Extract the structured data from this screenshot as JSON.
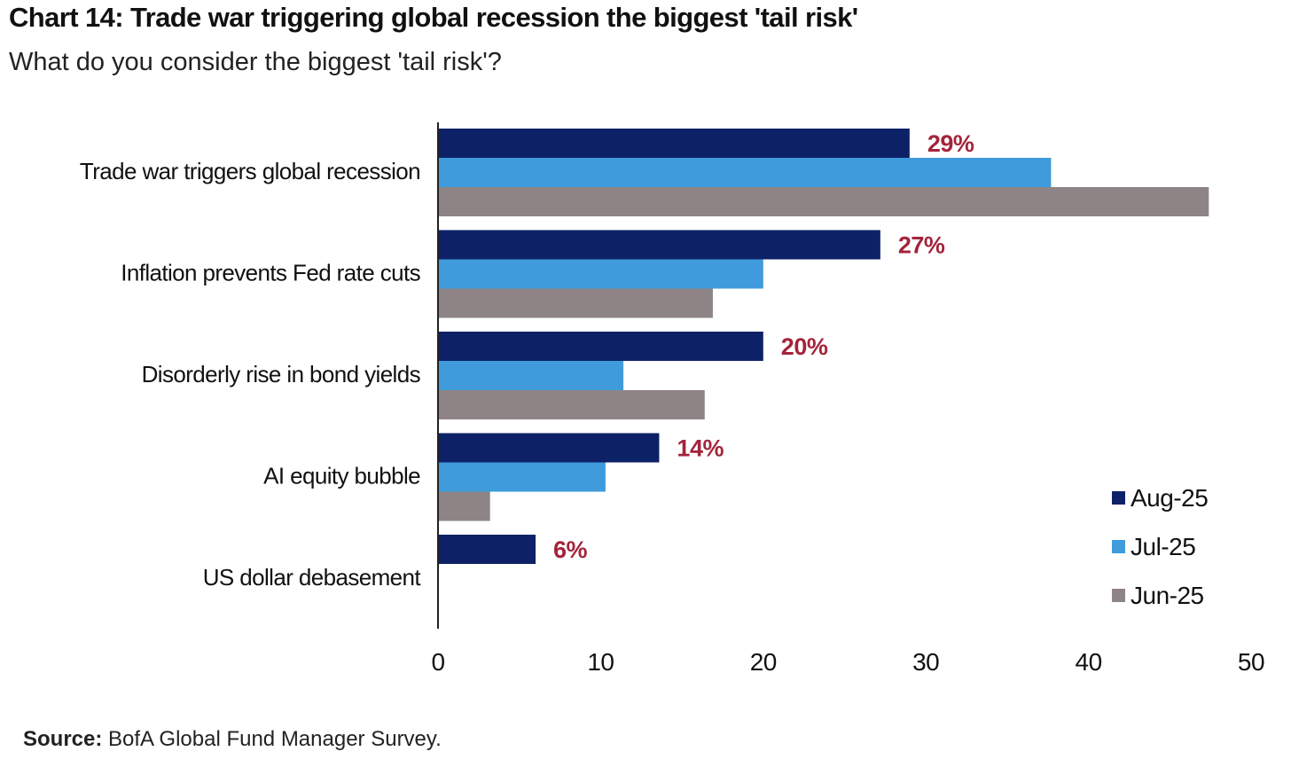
{
  "header": {
    "title": "Chart 14: Trade war triggering global recession the biggest 'tail risk'",
    "subtitle": "What do you consider the biggest 'tail risk'?"
  },
  "footer": {
    "source_label": "Source:",
    "source_text": " BofA Global Fund Manager Survey."
  },
  "chart_data": {
    "type": "bar",
    "orientation": "horizontal",
    "categories": [
      "Trade war triggers global recession",
      "Inflation prevents Fed rate cuts",
      "Disorderly rise in bond yields",
      "AI equity bubble",
      "US dollar debasement"
    ],
    "series": [
      {
        "name": "Aug-25",
        "color": "#0d2266",
        "values": [
          29,
          27.2,
          20,
          13.6,
          6
        ]
      },
      {
        "name": "Jul-25",
        "color": "#3f9bdb",
        "values": [
          37.7,
          20,
          11.4,
          10.3,
          0
        ]
      },
      {
        "name": "Jun-25",
        "color": "#8f8485",
        "values": [
          47.4,
          16.9,
          16.4,
          3.2,
          0
        ]
      }
    ],
    "data_labels": [
      "29%",
      "27%",
      "20%",
      "14%",
      "6%"
    ],
    "data_label_color": "#a3243b",
    "xlim": [
      0,
      50
    ],
    "xticks": [
      0,
      10,
      20,
      30,
      40,
      50
    ],
    "grid": false,
    "legend_position": "bottom-right"
  }
}
